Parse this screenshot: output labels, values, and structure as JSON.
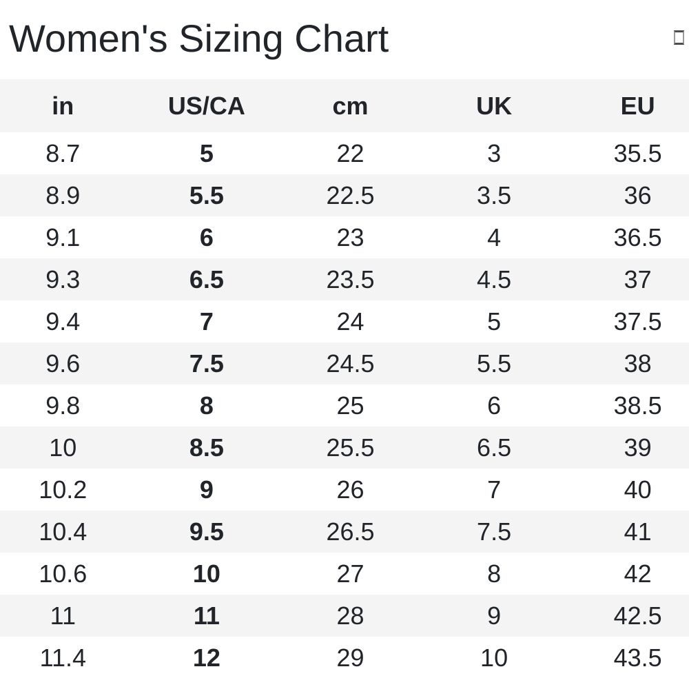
{
  "header": {
    "title": "Women's Sizing Chart"
  },
  "table": {
    "columns": [
      "in",
      "US/CA",
      "cm",
      "UK",
      "EU"
    ],
    "bold_column_index": 1,
    "rows": [
      [
        "8.7",
        "5",
        "22",
        "3",
        "35.5"
      ],
      [
        "8.9",
        "5.5",
        "22.5",
        "3.5",
        "36"
      ],
      [
        "9.1",
        "6",
        "23",
        "4",
        "36.5"
      ],
      [
        "9.3",
        "6.5",
        "23.5",
        "4.5",
        "37"
      ],
      [
        "9.4",
        "7",
        "24",
        "5",
        "37.5"
      ],
      [
        "9.6",
        "7.5",
        "24.5",
        "5.5",
        "38"
      ],
      [
        "9.8",
        "8",
        "25",
        "6",
        "38.5"
      ],
      [
        "10",
        "8.5",
        "25.5",
        "6.5",
        "39"
      ],
      [
        "10.2",
        "9",
        "26",
        "7",
        "40"
      ],
      [
        "10.4",
        "9.5",
        "26.5",
        "7.5",
        "41"
      ],
      [
        "10.6",
        "10",
        "27",
        "8",
        "42"
      ],
      [
        "11",
        "11",
        "28",
        "9",
        "42.5"
      ],
      [
        "11.4",
        "12",
        "29",
        "10",
        "43.5"
      ]
    ]
  },
  "colors": {
    "background": "#ffffff",
    "stripe": "#f4f4f5",
    "text": "#212529"
  }
}
